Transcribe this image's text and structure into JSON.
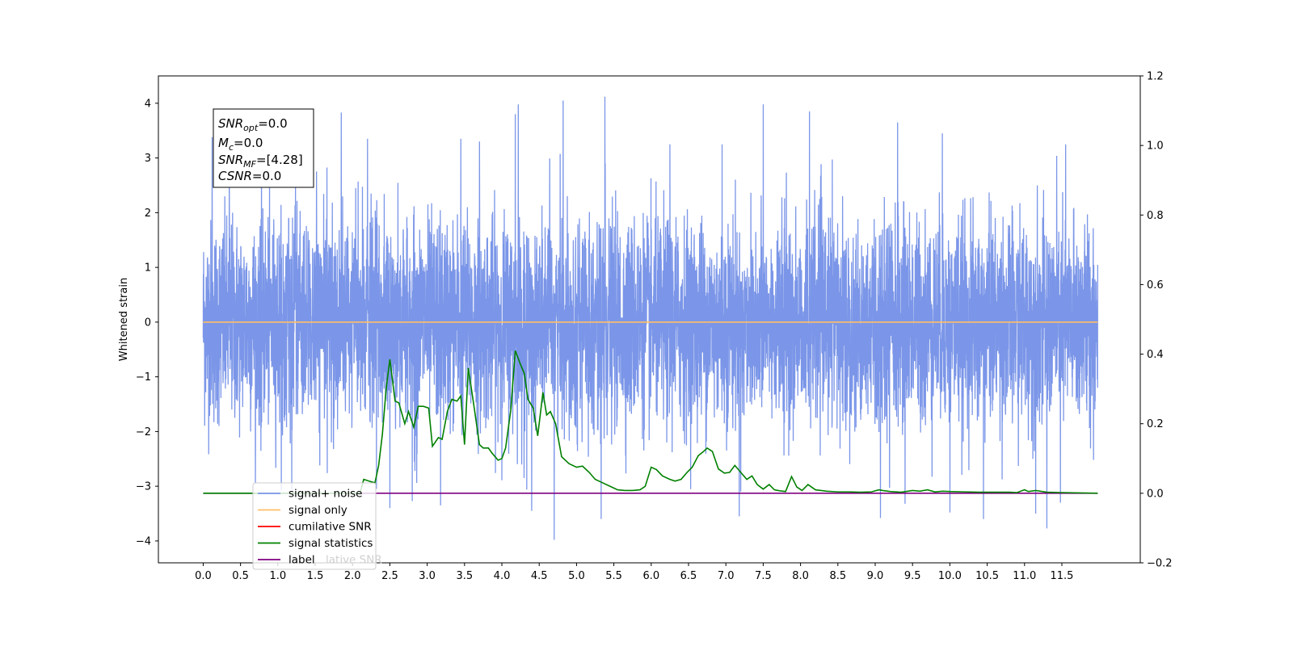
{
  "chart_data": {
    "type": "line",
    "title": "",
    "xlabel": "",
    "ylabel": "Whitened strain",
    "xlim": [
      -0.6,
      12.55
    ],
    "ylim": [
      -4.4,
      4.5
    ],
    "y2lim": [
      -0.2,
      1.2
    ],
    "x_ticks": [
      "0.0",
      "0.5",
      "1.0",
      "1.5",
      "2.0",
      "2.5",
      "3.0",
      "3.5",
      "4.0",
      "4.5",
      "5.0",
      "5.5",
      "6.0",
      "6.5",
      "7.0",
      "7.5",
      "8.0",
      "8.5",
      "9.0",
      "9.5",
      "10.0",
      "10.5",
      "11.0",
      "11.5"
    ],
    "y_ticks": [
      "−4",
      "−3",
      "−2",
      "−1",
      "0",
      "1",
      "2",
      "3",
      "4"
    ],
    "y2_ticks": [
      "−0.2",
      "0.0",
      "0.2",
      "0.4",
      "0.6",
      "0.8",
      "1.0",
      "1.2"
    ],
    "grid": false,
    "legend_position": "lower-left",
    "colors": {
      "signal_noise": "#7b96e8",
      "signal_only": "#ffbf66",
      "cumulative_snr": "#ff0000",
      "signal_statistics": "#008000",
      "label": "#800080"
    },
    "legend": [
      {
        "key": "signal_noise",
        "label": "signal+ noise"
      },
      {
        "key": "signal_only",
        "label": "signal only"
      },
      {
        "key": "cumulative_snr",
        "label": "cumilative SNR"
      },
      {
        "key": "signal_statistics",
        "label": "signal statistics"
      },
      {
        "key": "label",
        "label": "label"
      }
    ],
    "legend_hidden_text": "lative SNR",
    "info_box": {
      "snr_opt": {
        "base": "SNR",
        "sub": "opt",
        "value": "=0.0"
      },
      "mc": {
        "base": "M",
        "sub": "c",
        "value": "=0.0"
      },
      "snr_mf": {
        "base": "SNR",
        "sub": "MF",
        "value": "=[4.28]"
      },
      "csnr": {
        "base": "CSNR",
        "sub": "",
        "value": "=0.0"
      }
    },
    "series": [
      {
        "name": "signal+ noise",
        "axis": "left",
        "x_start": 0.0,
        "x_end": 11.98,
        "samples": 6000,
        "std": 0.92,
        "peaks": [
          {
            "x": 0.12,
            "y": 3.38
          },
          {
            "x": 0.35,
            "y": 3.05
          },
          {
            "x": 1.85,
            "y": 3.83
          },
          {
            "x": 2.2,
            "y": 3.35
          },
          {
            "x": 3.45,
            "y": 3.35
          },
          {
            "x": 3.7,
            "y": 3.3
          },
          {
            "x": 4.18,
            "y": 3.8
          },
          {
            "x": 4.22,
            "y": 3.98
          },
          {
            "x": 4.82,
            "y": 4.05
          },
          {
            "x": 5.38,
            "y": 4.12
          },
          {
            "x": 6.25,
            "y": 3.25
          },
          {
            "x": 6.95,
            "y": 3.25
          },
          {
            "x": 7.5,
            "y": 3.98
          },
          {
            "x": 8.12,
            "y": 3.85
          },
          {
            "x": 9.3,
            "y": 3.65
          },
          {
            "x": 9.9,
            "y": 3.45
          },
          {
            "x": 10.45,
            "y": 3.52
          },
          {
            "x": 11.55,
            "y": 3.25
          },
          {
            "x": 2.32,
            "y": -3.05
          },
          {
            "x": 2.5,
            "y": -3.4
          },
          {
            "x": 2.8,
            "y": -3.27
          },
          {
            "x": 3.18,
            "y": -3.35
          },
          {
            "x": 4.4,
            "y": -3.45
          },
          {
            "x": 4.7,
            "y": -3.98
          },
          {
            "x": 5.33,
            "y": -3.6
          },
          {
            "x": 7.18,
            "y": -3.55
          },
          {
            "x": 9.07,
            "y": -3.58
          },
          {
            "x": 9.4,
            "y": -3.32
          },
          {
            "x": 10.0,
            "y": -3.48
          },
          {
            "x": 10.45,
            "y": -3.6
          },
          {
            "x": 11.15,
            "y": -3.5
          },
          {
            "x": 11.3,
            "y": -3.77
          },
          {
            "x": 11.48,
            "y": -3.3
          }
        ]
      },
      {
        "name": "signal only",
        "axis": "left",
        "x": [
          0.0,
          11.98
        ],
        "y": [
          0.0,
          0.0
        ]
      },
      {
        "name": "label",
        "axis": "right",
        "x": [
          0.0,
          11.98
        ],
        "y": [
          0.0,
          0.0
        ]
      },
      {
        "name": "signal statistics",
        "axis": "right",
        "x": [
          0.0,
          2.1,
          2.15,
          2.22,
          2.3,
          2.35,
          2.4,
          2.45,
          2.5,
          2.57,
          2.62,
          2.7,
          2.75,
          2.82,
          2.88,
          2.95,
          3.02,
          3.07,
          3.15,
          3.2,
          3.27,
          3.33,
          3.4,
          3.45,
          3.5,
          3.55,
          3.62,
          3.7,
          3.75,
          3.82,
          3.87,
          3.95,
          4.0,
          4.05,
          4.12,
          4.18,
          4.25,
          4.3,
          4.35,
          4.42,
          4.48,
          4.55,
          4.6,
          4.65,
          4.72,
          4.8,
          4.9,
          5.0,
          5.08,
          5.17,
          5.25,
          5.35,
          5.45,
          5.55,
          5.65,
          5.75,
          5.85,
          5.92,
          6.0,
          6.07,
          6.15,
          6.25,
          6.32,
          6.4,
          6.48,
          6.55,
          6.63,
          6.7,
          6.75,
          6.82,
          6.9,
          6.98,
          7.05,
          7.12,
          7.2,
          7.28,
          7.35,
          7.42,
          7.5,
          7.58,
          7.65,
          7.72,
          7.8,
          7.88,
          7.95,
          8.02,
          8.1,
          8.2,
          8.35,
          8.5,
          8.65,
          8.8,
          8.95,
          9.05,
          9.1,
          9.2,
          9.35,
          9.5,
          9.6,
          9.7,
          9.8,
          9.9,
          10.0,
          10.2,
          10.4,
          10.6,
          10.8,
          10.9,
          11.0,
          11.05,
          11.15,
          11.3,
          11.5,
          11.98
        ],
        "y": [
          0.0,
          0.0,
          0.04,
          0.035,
          0.03,
          0.08,
          0.17,
          0.3,
          0.385,
          0.265,
          0.26,
          0.2,
          0.235,
          0.19,
          0.25,
          0.25,
          0.245,
          0.135,
          0.16,
          0.155,
          0.235,
          0.27,
          0.265,
          0.28,
          0.14,
          0.36,
          0.26,
          0.14,
          0.13,
          0.13,
          0.115,
          0.095,
          0.1,
          0.13,
          0.24,
          0.41,
          0.37,
          0.345,
          0.27,
          0.245,
          0.165,
          0.29,
          0.225,
          0.235,
          0.2,
          0.105,
          0.085,
          0.075,
          0.078,
          0.06,
          0.04,
          0.03,
          0.02,
          0.01,
          0.008,
          0.008,
          0.01,
          0.02,
          0.075,
          0.068,
          0.05,
          0.04,
          0.035,
          0.04,
          0.06,
          0.075,
          0.108,
          0.12,
          0.13,
          0.12,
          0.07,
          0.058,
          0.06,
          0.08,
          0.06,
          0.04,
          0.05,
          0.025,
          0.012,
          0.025,
          0.01,
          0.007,
          0.005,
          0.048,
          0.018,
          0.008,
          0.025,
          0.01,
          0.006,
          0.004,
          0.004,
          0.003,
          0.004,
          0.01,
          0.008,
          0.005,
          0.003,
          0.008,
          0.006,
          0.01,
          0.004,
          0.006,
          0.005,
          0.004,
          0.003,
          0.003,
          0.003,
          0.002,
          0.01,
          0.005,
          0.008,
          0.003,
          0.002,
          0.0
        ]
      }
    ]
  }
}
